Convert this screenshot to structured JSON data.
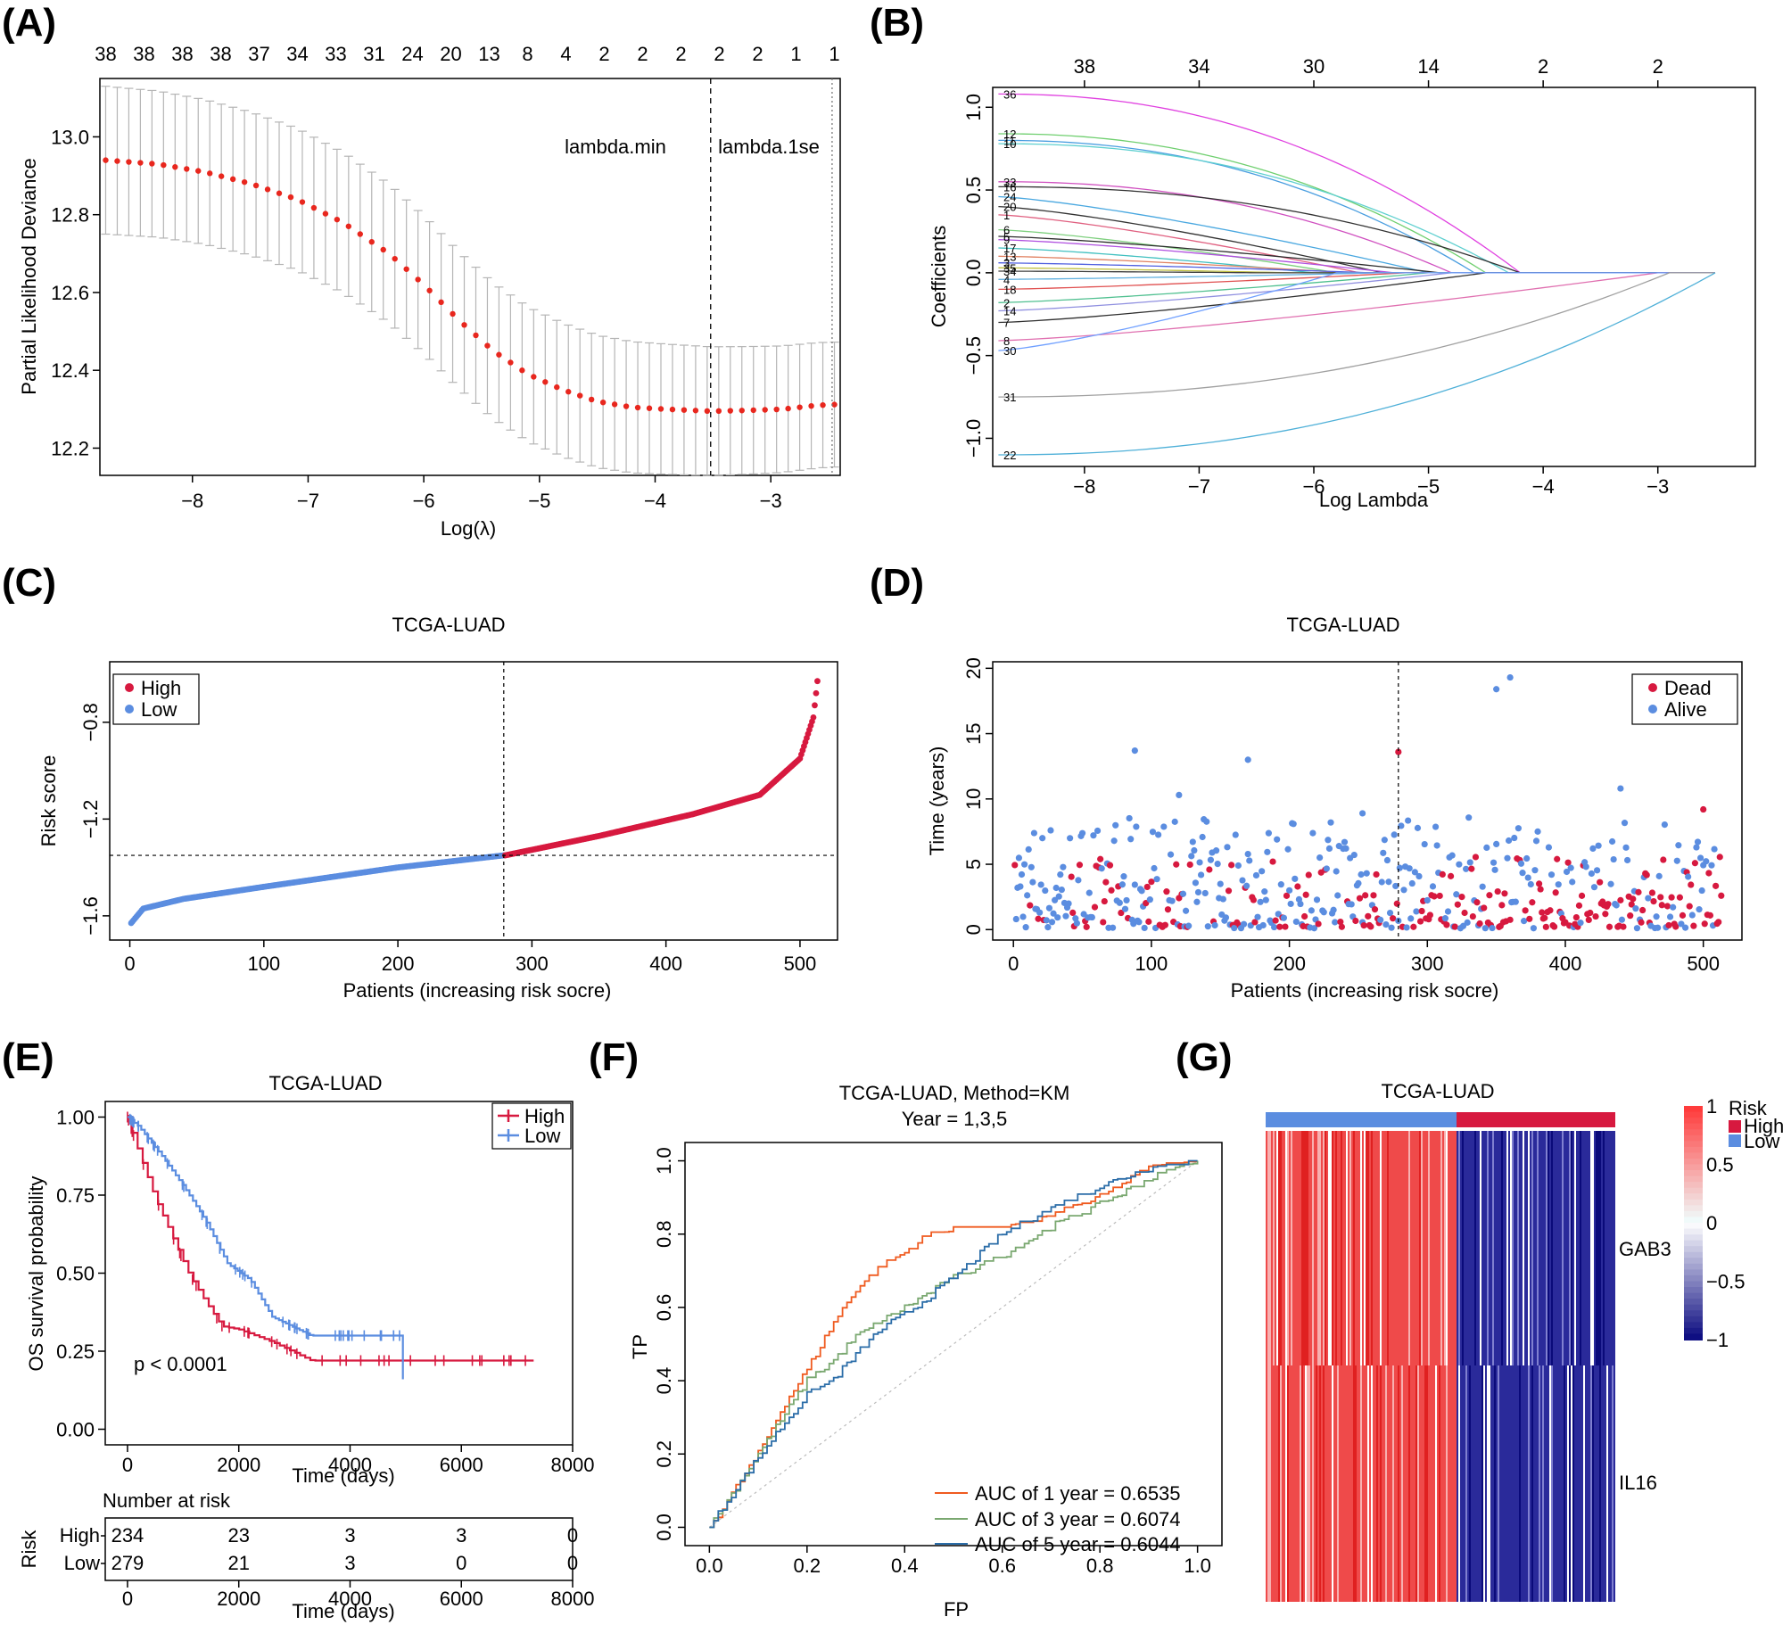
{
  "panels": {
    "A": {
      "label": "(A)",
      "xlabel": "Log(λ)",
      "ylabel": "Partial Likelihood Deviance",
      "xticks": [
        -8,
        -7,
        -6,
        -5,
        -4,
        -3
      ],
      "yticks": [
        "12.2",
        "12.4",
        "12.6",
        "12.8",
        "13.0"
      ],
      "top_counts": [
        38,
        38,
        38,
        38,
        37,
        34,
        33,
        31,
        24,
        20,
        13,
        8,
        4,
        2,
        2,
        2,
        2,
        2,
        1,
        1
      ],
      "lambda_min_label": "lambda.min",
      "lambda_1se_label": "lambda.1se",
      "lambda_min": -3.52,
      "lambda_1se": -2.47
    },
    "B": {
      "label": "(B)",
      "xlabel": "Log Lambda",
      "ylabel": "Coefficients",
      "xticks": [
        -8,
        -7,
        -6,
        -5,
        -4,
        -3
      ],
      "yticks": [
        "−1.0",
        "−0.5",
        "0.0",
        "0.5",
        "1.0"
      ],
      "top_ticks": [
        "38",
        "34",
        "30",
        "14",
        "2",
        "2"
      ],
      "left_labels": [
        "36",
        "12",
        "11",
        "10",
        "33",
        "16",
        "24",
        "20",
        "1",
        "6",
        "5",
        "9",
        "17",
        "13",
        "3",
        "35",
        "34",
        "4",
        "18",
        "2",
        "14",
        "7",
        "8",
        "30",
        "31",
        "22"
      ]
    },
    "C": {
      "label": "(C)",
      "title": "TCGA-LUAD",
      "xlabel": "Patients (increasing risk socre)",
      "ylabel": "Risk score",
      "xticks": [
        "0",
        "100",
        "200",
        "300",
        "400",
        "500"
      ],
      "yticks": [
        "−1.6",
        "−1.2",
        "−0.8"
      ],
      "legend": [
        "High",
        "Low"
      ],
      "cutoff_patient": 279,
      "cutoff_score": -1.35
    },
    "D": {
      "label": "(D)",
      "title": "TCGA-LUAD",
      "xlabel": "Patients (increasing risk socre)",
      "ylabel": "Time (years)",
      "xticks": [
        "0",
        "100",
        "200",
        "300",
        "400",
        "500"
      ],
      "yticks": [
        "0",
        "5",
        "10",
        "15",
        "20"
      ],
      "legend": [
        "Dead",
        "Alive"
      ]
    },
    "E": {
      "label": "(E)",
      "title": "TCGA-LUAD",
      "xlabel": "Time (days)",
      "ylabel": "OS survival probability",
      "xticks": [
        "0",
        "2000",
        "4000",
        "6000",
        "8000"
      ],
      "yticks": [
        "0.00",
        "0.25",
        "0.50",
        "0.75",
        "1.00"
      ],
      "legend": [
        "High",
        "Low"
      ],
      "pvalue": "p < 0.0001",
      "risk_table_title": "Number at risk",
      "risk_axis_label": "Risk",
      "risk_rows": [
        {
          "group": "High",
          "counts": [
            "234",
            "23",
            "3",
            "3",
            "0"
          ]
        },
        {
          "group": "Low",
          "counts": [
            "279",
            "21",
            "3",
            "0",
            "0"
          ]
        }
      ],
      "risk_xlabel": "Time (days)"
    },
    "F": {
      "label": "(F)",
      "title": "TCGA-LUAD, Method=KM",
      "subtitle": "Year = 1,3,5",
      "xlabel": "FP",
      "ylabel": "TP",
      "xticks": [
        "0.0",
        "0.2",
        "0.4",
        "0.6",
        "0.8",
        "1.0"
      ],
      "yticks": [
        "0.0",
        "0.2",
        "0.4",
        "0.6",
        "0.8",
        "1.0"
      ],
      "legend": [
        "AUC of 1 year = 0.6535",
        "AUC of 3 year = 0.6074",
        "AUC of 5 year = 0.6044"
      ]
    },
    "G": {
      "label": "(G)",
      "title": "TCGA-LUAD",
      "genes": [
        "GAB3",
        "IL16"
      ],
      "legend_title": "Risk",
      "legend": [
        "High",
        "Low"
      ],
      "scale_ticks": [
        "1",
        "0.5",
        "0",
        "−0.5",
        "−1"
      ]
    }
  },
  "chart_data": [
    {
      "panel": "A",
      "type": "line",
      "title": "",
      "xlabel": "Log(λ)",
      "ylabel": "Partial Likelihood Deviance",
      "xlim": [
        -8.8,
        -2.4
      ],
      "ylim": [
        12.13,
        13.15
      ],
      "x": [
        -8.75,
        -8.3,
        -7.9,
        -7.5,
        -7.1,
        -6.7,
        -6.3,
        -6.0,
        -5.7,
        -5.4,
        -5.1,
        -4.8,
        -4.5,
        -4.2,
        -3.9,
        -3.52,
        -3.2,
        -2.9,
        -2.6,
        -2.45
      ],
      "mean": [
        12.94,
        12.93,
        12.91,
        12.88,
        12.84,
        12.78,
        12.7,
        12.62,
        12.53,
        12.45,
        12.39,
        12.35,
        12.32,
        12.305,
        12.3,
        12.295,
        12.297,
        12.3,
        12.31,
        12.312
      ],
      "ci_halfwidth": 0.19
    },
    {
      "panel": "B",
      "type": "line",
      "title": "",
      "xlabel": "Log Lambda",
      "ylabel": "Coefficients",
      "xlim": [
        -8.8,
        -2.15
      ],
      "ylim": [
        -1.17,
        1.12
      ],
      "series_end_log_lambda": [
        -4.2,
        -4.8,
        -5.4,
        -4.7,
        -5.8,
        -2.5,
        -2.9,
        -4.5
      ],
      "series_start_coef": [
        1.08,
        0.84,
        0.78,
        0.54,
        -0.75,
        -0.75,
        -1.1,
        -0.41
      ]
    },
    {
      "panel": "C",
      "type": "scatter",
      "title": "TCGA-LUAD",
      "xlabel": "Patients (increasing risk socre)",
      "ylabel": "Risk score",
      "xlim": [
        -15,
        528
      ],
      "ylim": [
        -1.7,
        -0.55
      ],
      "series": [
        {
          "name": "Low",
          "x_range": [
            1,
            279
          ],
          "y_points": [
            [
              1,
              -1.63
            ],
            [
              10,
              -1.57
            ],
            [
              40,
              -1.53
            ],
            [
              100,
              -1.48
            ],
            [
              200,
              -1.4
            ],
            [
              279,
              -1.35
            ]
          ]
        },
        {
          "name": "High",
          "x_range": [
            280,
            513
          ],
          "y_points": [
            [
              280,
              -1.35
            ],
            [
              350,
              -1.27
            ],
            [
              420,
              -1.18
            ],
            [
              470,
              -1.1
            ],
            [
              500,
              -0.95
            ],
            [
              510,
              -0.78
            ],
            [
              513,
              -0.63
            ]
          ]
        }
      ]
    },
    {
      "panel": "D",
      "type": "scatter",
      "title": "TCGA-LUAD",
      "xlabel": "Patients (increasing risk socre)",
      "ylabel": "Time (years)",
      "xlim": [
        -15,
        528
      ],
      "ylim": [
        -0.8,
        20.5
      ],
      "series": [
        {
          "name": "Dead",
          "summary": "red points, median approx 1.5 years"
        },
        {
          "name": "Alive",
          "summary": "blue points, median approx 2 years, max approx 19.3"
        }
      ]
    },
    {
      "panel": "E",
      "type": "line",
      "title": "TCGA-LUAD",
      "xlabel": "Time (days)",
      "ylabel": "OS survival probability",
      "xlim": [
        -400,
        8000
      ],
      "ylim": [
        -0.05,
        1.05
      ],
      "series": [
        {
          "name": "High",
          "t": [
            0,
            200,
            500,
            800,
            1100,
            1400,
            1700,
            2000,
            2600,
            3300,
            7300
          ],
          "s": [
            1.0,
            0.89,
            0.74,
            0.62,
            0.5,
            0.41,
            0.33,
            0.32,
            0.28,
            0.22,
            0.22
          ]
        },
        {
          "name": "Low",
          "t": [
            0,
            200,
            600,
            1000,
            1400,
            1800,
            2200,
            2600,
            3300,
            4900,
            4950
          ],
          "s": [
            1.0,
            0.97,
            0.88,
            0.78,
            0.67,
            0.53,
            0.48,
            0.36,
            0.3,
            0.3,
            0.16
          ]
        }
      ]
    },
    {
      "panel": "F",
      "type": "line",
      "title": "TCGA-LUAD, Method=KM",
      "xlabel": "FP",
      "ylabel": "TP",
      "xlim": [
        -0.05,
        1.05
      ],
      "ylim": [
        -0.05,
        1.05
      ],
      "series": [
        {
          "name": "AUC of 1 year = 0.6535",
          "fp": [
            0,
            0.05,
            0.1,
            0.15,
            0.2,
            0.25,
            0.3,
            0.35,
            0.4,
            0.45,
            0.5,
            0.6,
            0.7,
            0.8,
            0.9,
            1.0
          ],
          "tp": [
            0,
            0.1,
            0.2,
            0.33,
            0.43,
            0.55,
            0.65,
            0.71,
            0.75,
            0.8,
            0.81,
            0.81,
            0.85,
            0.9,
            0.98,
            1.0
          ]
        },
        {
          "name": "AUC of 3 year = 0.6074",
          "fp": [
            0,
            0.05,
            0.1,
            0.15,
            0.2,
            0.25,
            0.3,
            0.4,
            0.5,
            0.6,
            0.7,
            0.8,
            0.9,
            1.0
          ],
          "tp": [
            0,
            0.1,
            0.2,
            0.3,
            0.4,
            0.45,
            0.52,
            0.6,
            0.68,
            0.74,
            0.82,
            0.88,
            0.95,
            1.0
          ]
        },
        {
          "name": "AUC of 5 year = 0.6044",
          "fp": [
            0,
            0.05,
            0.1,
            0.15,
            0.2,
            0.25,
            0.3,
            0.35,
            0.4,
            0.5,
            0.6,
            0.7,
            0.8,
            0.9,
            1.0
          ],
          "tp": [
            0,
            0.1,
            0.19,
            0.28,
            0.36,
            0.4,
            0.47,
            0.54,
            0.58,
            0.68,
            0.8,
            0.87,
            0.93,
            0.98,
            1.0
          ]
        }
      ]
    },
    {
      "panel": "G",
      "type": "heatmap",
      "title": "TCGA-LUAD",
      "rows": [
        "GAB3",
        "IL16"
      ],
      "groups": [
        {
          "name": "Low",
          "share": 0.545
        },
        {
          "name": "High",
          "share": 0.455
        }
      ],
      "scale": [
        -1,
        1
      ]
    }
  ]
}
